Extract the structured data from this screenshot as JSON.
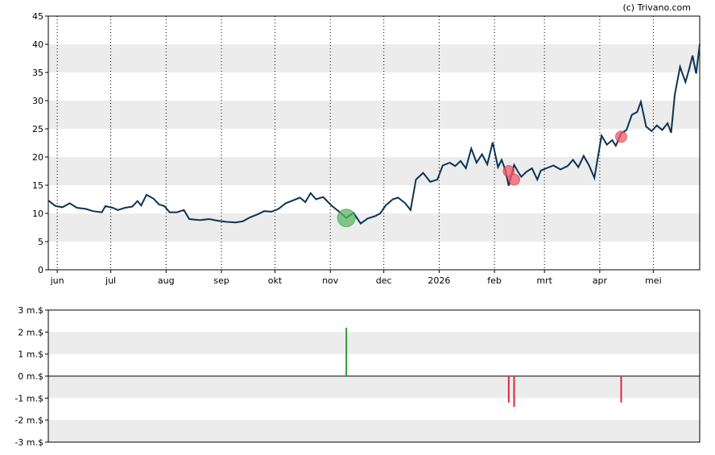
{
  "credit": "(c) Trivano.com",
  "colors": {
    "price_line": "#0b3354",
    "band": "#ececec",
    "buy": "#2e9a3f",
    "sell": "#e0263a",
    "buy_marker": "#5cb866",
    "sell_marker": "#f05a6a"
  },
  "chart_data": [
    {
      "type": "line",
      "title": "",
      "xlabel": "",
      "ylabel": "",
      "ylim": [
        0,
        45
      ],
      "yticks": [
        "0",
        "5",
        "10",
        "15",
        "20",
        "25",
        "30",
        "35",
        "40",
        "45"
      ],
      "xlim": [
        "2025-05-27",
        "2026-05-27"
      ],
      "xticks": [
        {
          "label": "jun",
          "date": "2025-06-01"
        },
        {
          "label": "jul",
          "date": "2025-07-01"
        },
        {
          "label": "aug",
          "date": "2025-08-01"
        },
        {
          "label": "sep",
          "date": "2025-09-01"
        },
        {
          "label": "okt",
          "date": "2025-10-01"
        },
        {
          "label": "nov",
          "date": "2025-11-01"
        },
        {
          "label": "dec",
          "date": "2025-12-01"
        },
        {
          "label": "2026",
          "date": "2026-01-01"
        },
        {
          "label": "feb",
          "date": "2026-02-01"
        },
        {
          "label": "mrt",
          "date": "2026-03-01"
        },
        {
          "label": "apr",
          "date": "2026-04-01"
        },
        {
          "label": "mei",
          "date": "2026-05-01"
        }
      ],
      "grid": "alternating horizontal bands, dotted vertical lines at month starts",
      "series": [
        {
          "points": [
            [
              "2025-05-27",
              12.3
            ],
            [
              "2025-05-31",
              11.3
            ],
            [
              "2025-06-04",
              11.1
            ],
            [
              "2025-06-08",
              11.8
            ],
            [
              "2025-06-12",
              11.0
            ],
            [
              "2025-06-17",
              10.8
            ],
            [
              "2025-06-21",
              10.4
            ],
            [
              "2025-06-26",
              10.2
            ],
            [
              "2025-06-28",
              11.3
            ],
            [
              "2025-07-02",
              11.0
            ],
            [
              "2025-07-05",
              10.6
            ],
            [
              "2025-07-09",
              11.0
            ],
            [
              "2025-07-13",
              11.2
            ],
            [
              "2025-07-16",
              12.2
            ],
            [
              "2025-07-18",
              11.4
            ],
            [
              "2025-07-21",
              13.3
            ],
            [
              "2025-07-25",
              12.6
            ],
            [
              "2025-07-28",
              11.6
            ],
            [
              "2025-07-31",
              11.3
            ],
            [
              "2025-08-03",
              10.2
            ],
            [
              "2025-08-07",
              10.2
            ],
            [
              "2025-08-11",
              10.6
            ],
            [
              "2025-08-14",
              9.0
            ],
            [
              "2025-08-20",
              8.8
            ],
            [
              "2025-08-25",
              9.0
            ],
            [
              "2025-08-30",
              8.7
            ],
            [
              "2025-09-04",
              8.5
            ],
            [
              "2025-09-09",
              8.4
            ],
            [
              "2025-09-13",
              8.6
            ],
            [
              "2025-09-17",
              9.3
            ],
            [
              "2025-09-21",
              9.8
            ],
            [
              "2025-09-25",
              10.4
            ],
            [
              "2025-09-29",
              10.3
            ],
            [
              "2025-10-03",
              10.8
            ],
            [
              "2025-10-07",
              11.8
            ],
            [
              "2025-10-11",
              12.3
            ],
            [
              "2025-10-15",
              12.8
            ],
            [
              "2025-10-18",
              12.0
            ],
            [
              "2025-10-21",
              13.6
            ],
            [
              "2025-10-24",
              12.5
            ],
            [
              "2025-10-28",
              12.9
            ],
            [
              "2025-11-02",
              11.3
            ],
            [
              "2025-11-06",
              10.3
            ],
            [
              "2025-11-10",
              9.2
            ],
            [
              "2025-11-14",
              10.1
            ],
            [
              "2025-11-18",
              8.2
            ],
            [
              "2025-11-22",
              9.1
            ],
            [
              "2025-11-26",
              9.5
            ],
            [
              "2025-11-29",
              10.0
            ],
            [
              "2025-12-02",
              11.4
            ],
            [
              "2025-12-06",
              12.5
            ],
            [
              "2025-12-09",
              12.8
            ],
            [
              "2025-12-13",
              11.8
            ],
            [
              "2025-12-16",
              10.6
            ],
            [
              "2025-12-19",
              16.0
            ],
            [
              "2025-12-23",
              17.2
            ],
            [
              "2025-12-27",
              15.6
            ],
            [
              "2025-12-31",
              16.0
            ],
            [
              "2026-01-03",
              18.5
            ],
            [
              "2026-01-07",
              19.0
            ],
            [
              "2026-01-10",
              18.4
            ],
            [
              "2026-01-13",
              19.3
            ],
            [
              "2026-01-16",
              18.0
            ],
            [
              "2026-01-19",
              21.5
            ],
            [
              "2026-01-22",
              19.0
            ],
            [
              "2026-01-25",
              20.5
            ],
            [
              "2026-01-28",
              18.7
            ],
            [
              "2026-01-31",
              22.6
            ],
            [
              "2026-02-03",
              18.2
            ],
            [
              "2026-02-05",
              19.5
            ],
            [
              "2026-02-07",
              17.8
            ],
            [
              "2026-02-09",
              14.9
            ],
            [
              "2026-02-12",
              18.6
            ],
            [
              "2026-02-14",
              17.5
            ],
            [
              "2026-02-16",
              16.5
            ],
            [
              "2026-02-19",
              17.4
            ],
            [
              "2026-02-22",
              18.0
            ],
            [
              "2026-02-25",
              16.0
            ],
            [
              "2026-02-27",
              17.6
            ],
            [
              "2026-03-02",
              18.0
            ],
            [
              "2026-03-06",
              18.5
            ],
            [
              "2026-03-10",
              17.8
            ],
            [
              "2026-03-14",
              18.4
            ],
            [
              "2026-03-17",
              19.5
            ],
            [
              "2026-03-20",
              18.2
            ],
            [
              "2026-03-23",
              20.2
            ],
            [
              "2026-03-26",
              18.5
            ],
            [
              "2026-03-29",
              16.3
            ],
            [
              "2026-04-02",
              23.8
            ],
            [
              "2026-04-05",
              22.2
            ],
            [
              "2026-04-08",
              23.0
            ],
            [
              "2026-04-10",
              22.0
            ],
            [
              "2026-04-13",
              24.2
            ],
            [
              "2026-04-16",
              24.8
            ],
            [
              "2026-04-19",
              27.5
            ],
            [
              "2026-04-22",
              28.0
            ],
            [
              "2026-04-24",
              29.8
            ],
            [
              "2026-04-27",
              25.4
            ],
            [
              "2026-04-30",
              24.6
            ],
            [
              "2026-05-03",
              25.6
            ],
            [
              "2026-05-06",
              24.8
            ],
            [
              "2026-05-09",
              26.0
            ],
            [
              "2026-05-11",
              24.3
            ],
            [
              "2026-05-13",
              31.0
            ],
            [
              "2026-05-16",
              36.0
            ],
            [
              "2026-05-19",
              33.3
            ],
            [
              "2026-05-21",
              35.5
            ],
            [
              "2026-05-23",
              38.0
            ],
            [
              "2026-05-25",
              34.8
            ],
            [
              "2026-05-27",
              40.0
            ]
          ]
        }
      ],
      "markers": [
        {
          "kind": "buy",
          "date": "2025-11-10",
          "value": 9.2,
          "size": "large"
        },
        {
          "kind": "sell",
          "date": "2026-02-09",
          "value": 17.5,
          "size": "small"
        },
        {
          "kind": "sell",
          "date": "2026-02-12",
          "value": 16.0,
          "size": "small"
        },
        {
          "kind": "sell",
          "date": "2026-04-13",
          "value": 23.6,
          "size": "small"
        }
      ]
    },
    {
      "type": "bar",
      "title": "",
      "ylim": [
        -3,
        3
      ],
      "yticks": [
        "-3 m.$",
        "-2 m.$",
        "-1 m.$",
        "0 m.$",
        "1 m.$",
        "2 m.$",
        "3 m.$"
      ],
      "series": [
        {
          "points": [
            [
              "2025-11-10",
              2.2,
              "buy"
            ],
            [
              "2026-02-09",
              -1.2,
              "sell"
            ],
            [
              "2026-02-12",
              -1.4,
              "sell"
            ],
            [
              "2026-04-13",
              -1.2,
              "sell"
            ]
          ]
        }
      ]
    }
  ]
}
